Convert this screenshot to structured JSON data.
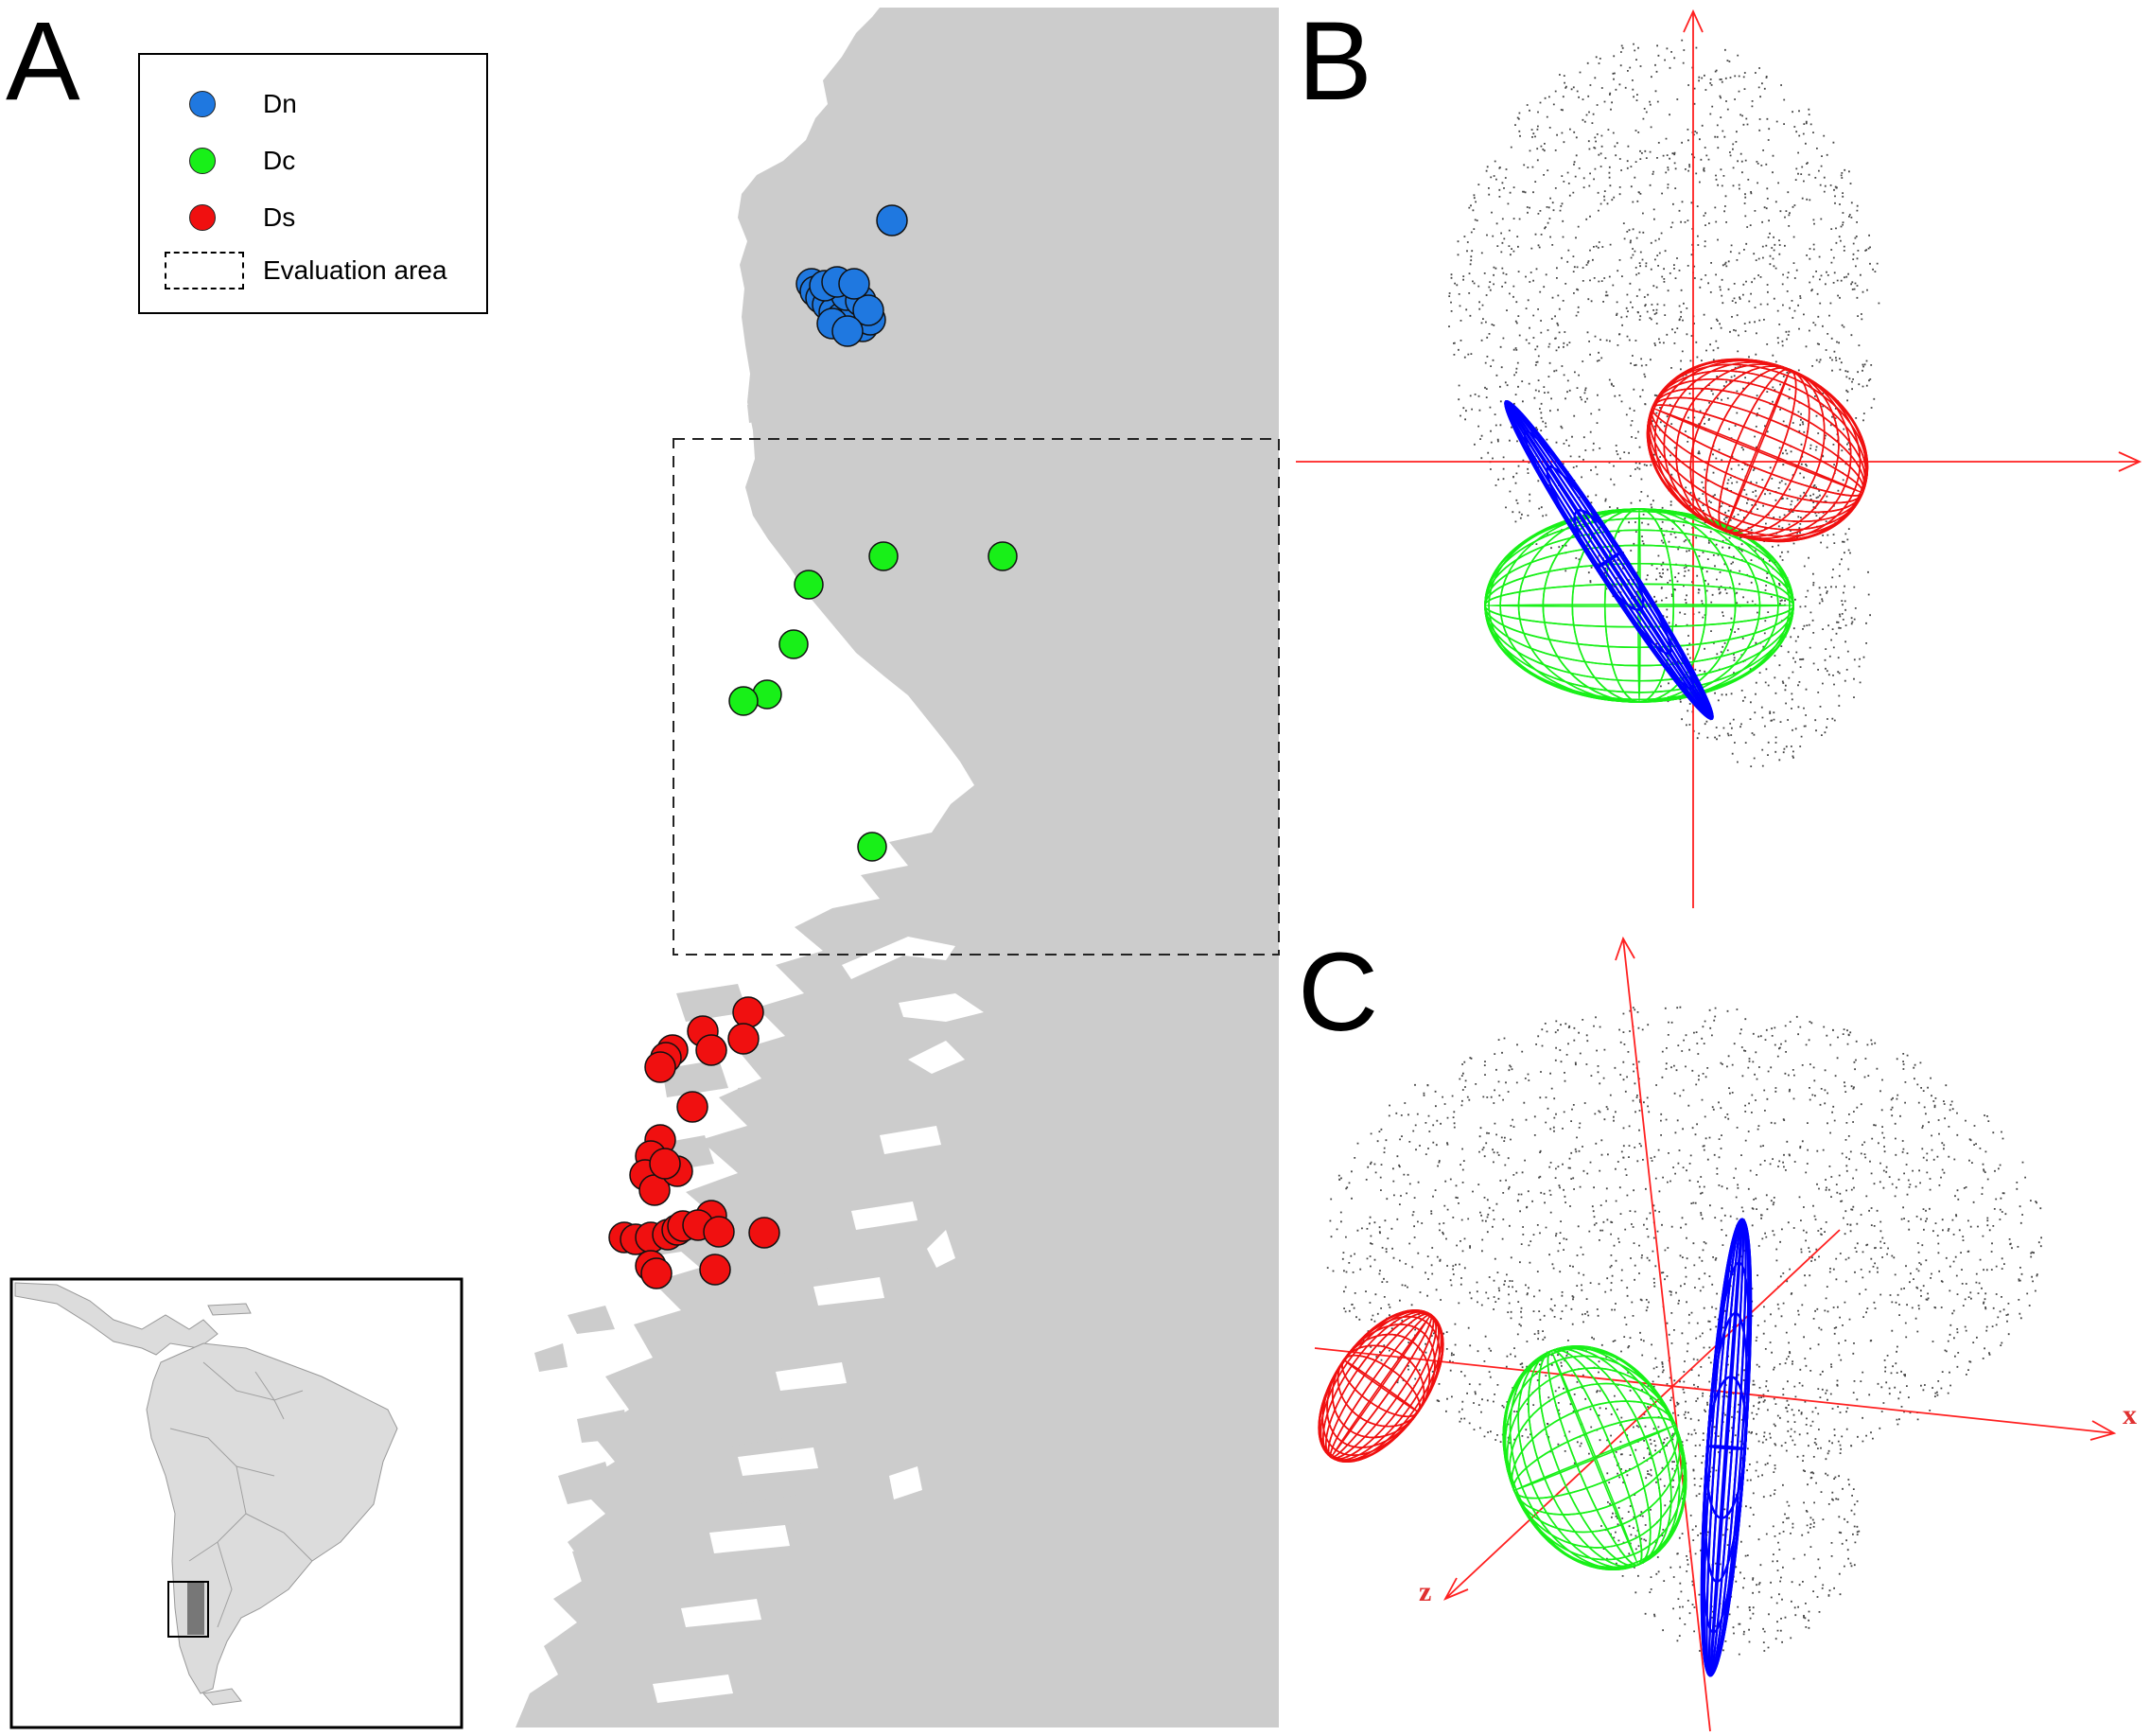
{
  "panels": {
    "a": "A",
    "b": "B",
    "c": "C"
  },
  "legend": {
    "items": [
      {
        "label": "Dn",
        "color": "#1f78e0"
      },
      {
        "label": "Dc",
        "color": "#18f018"
      },
      {
        "label": "Ds",
        "color": "#f01010"
      }
    ],
    "area_label": "Evaluation area"
  },
  "axes_c": {
    "x_label": "x",
    "z_label": "z"
  },
  "colors": {
    "land": "#cccccc",
    "inset_land": "#dcdcdc",
    "dn": "#1f78e0",
    "dc": "#18f018",
    "ds": "#f01010",
    "axis": "#ff2020",
    "ellipsoid_blue": "#0000ff"
  }
}
